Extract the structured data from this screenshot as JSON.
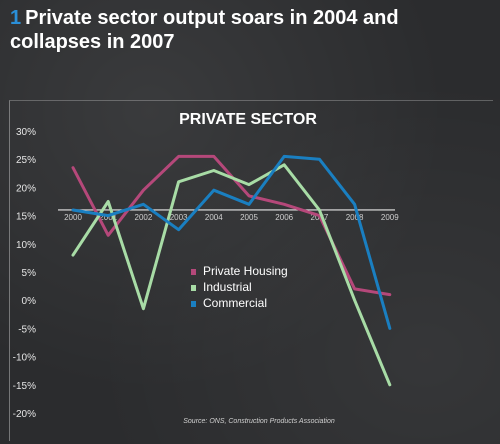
{
  "headline": {
    "number": "1",
    "text": "Private sector output soars in 2004 and collapses in 2007"
  },
  "source": "Source: ONS, Construction Products Association",
  "chart_data": {
    "type": "line",
    "title": "PRIVATE SECTOR",
    "xlabel": "",
    "ylabel": "",
    "x": [
      2000,
      2001,
      2002,
      2003,
      2004,
      2005,
      2006,
      2007,
      2008,
      2009
    ],
    "x_tick_labels": [
      "2000",
      "2001",
      "2002",
      "2003",
      "2004",
      "2005",
      "2006",
      "2007",
      "2008",
      "2009"
    ],
    "ylim": [
      -20,
      30
    ],
    "y_ticks": [
      30,
      25,
      20,
      15,
      10,
      5,
      0,
      -5,
      -10,
      -15,
      -20
    ],
    "y_tick_labels": [
      "30%",
      "25%",
      "20%",
      "15%",
      "10%",
      "5%",
      "0%",
      "-5%",
      "-10%",
      "-15%",
      "-20%"
    ],
    "x_axis_at": 16,
    "grid": false,
    "legend_position": "center-right",
    "series": [
      {
        "name": "Private Housing",
        "color": "#b5487a",
        "values": [
          23.5,
          11.5,
          19.5,
          25.5,
          25.5,
          18.5,
          17,
          15,
          2,
          1
        ]
      },
      {
        "name": "Industrial",
        "color": "#a8dca6",
        "values": [
          8,
          17.5,
          -1.5,
          21,
          23,
          20.5,
          24,
          16,
          0,
          -15
        ]
      },
      {
        "name": "Commercial",
        "color": "#1a7fc1",
        "values": [
          16,
          15,
          17,
          12.5,
          19.5,
          17,
          25.5,
          25,
          17,
          -5
        ]
      }
    ]
  }
}
